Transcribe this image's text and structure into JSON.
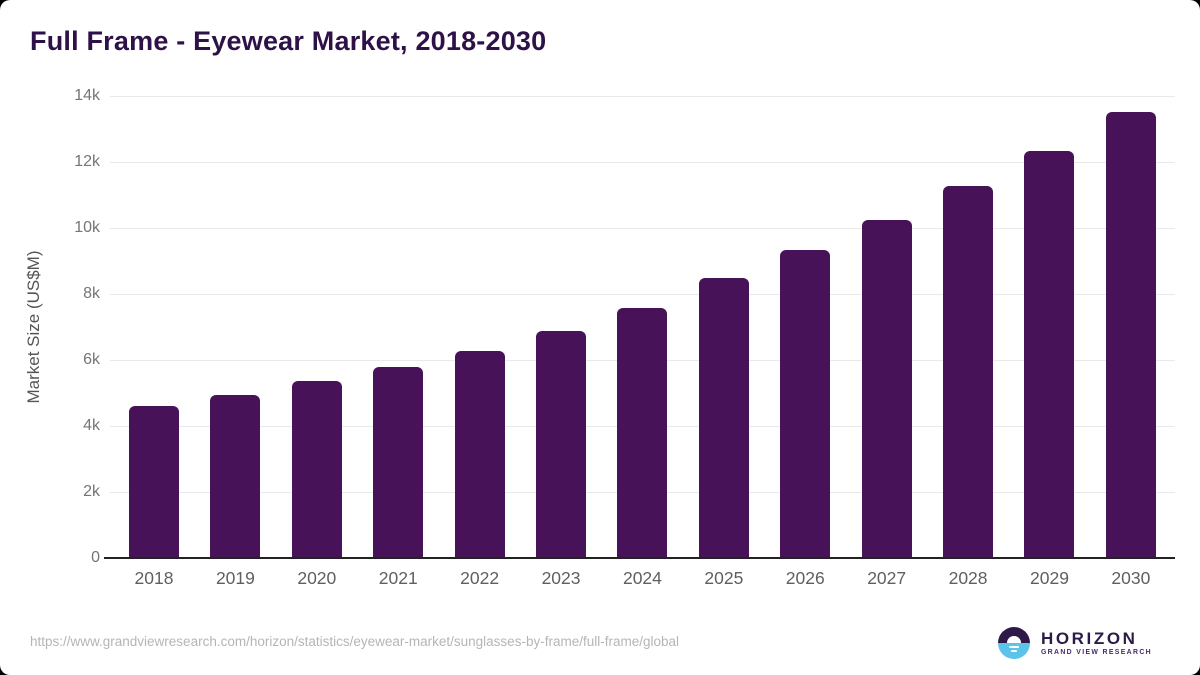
{
  "title": "Full Frame - Eyewear Market, 2018-2030",
  "source_url": "https://www.grandviewresearch.com/horizon/statistics/eyewear-market/sunglasses-by-frame/full-frame/global",
  "logo": {
    "wordmark": "HORIZON",
    "subtitle": "GRAND VIEW RESEARCH"
  },
  "colors": {
    "bar": "#481259",
    "title": "#2e1247",
    "grid": "#e9e9e9",
    "axis_line": "#222222",
    "tick_text": "#757575",
    "url_text": "#b5b5b5",
    "logo_purple": "#2e1a47",
    "logo_blue": "#5cc3eb"
  },
  "chart_data": {
    "type": "bar",
    "title": "Full Frame - Eyewear Market, 2018-2030",
    "categories": [
      "2018",
      "2019",
      "2020",
      "2021",
      "2022",
      "2023",
      "2024",
      "2025",
      "2026",
      "2027",
      "2028",
      "2029",
      "2030"
    ],
    "values": [
      4620,
      4950,
      5360,
      5800,
      6280,
      6880,
      7580,
      8480,
      9330,
      10240,
      11260,
      12330,
      13520
    ],
    "xlabel": "",
    "ylabel": "Market Size (US$M)",
    "ylim": [
      0,
      14000
    ],
    "yticks": [
      {
        "value": 0,
        "label": "0"
      },
      {
        "value": 2000,
        "label": "2k"
      },
      {
        "value": 4000,
        "label": "4k"
      },
      {
        "value": 6000,
        "label": "6k"
      },
      {
        "value": 8000,
        "label": "8k"
      },
      {
        "value": 10000,
        "label": "10k"
      },
      {
        "value": 12000,
        "label": "12k"
      },
      {
        "value": 14000,
        "label": "14k"
      }
    ],
    "grid": true,
    "legend": false
  }
}
